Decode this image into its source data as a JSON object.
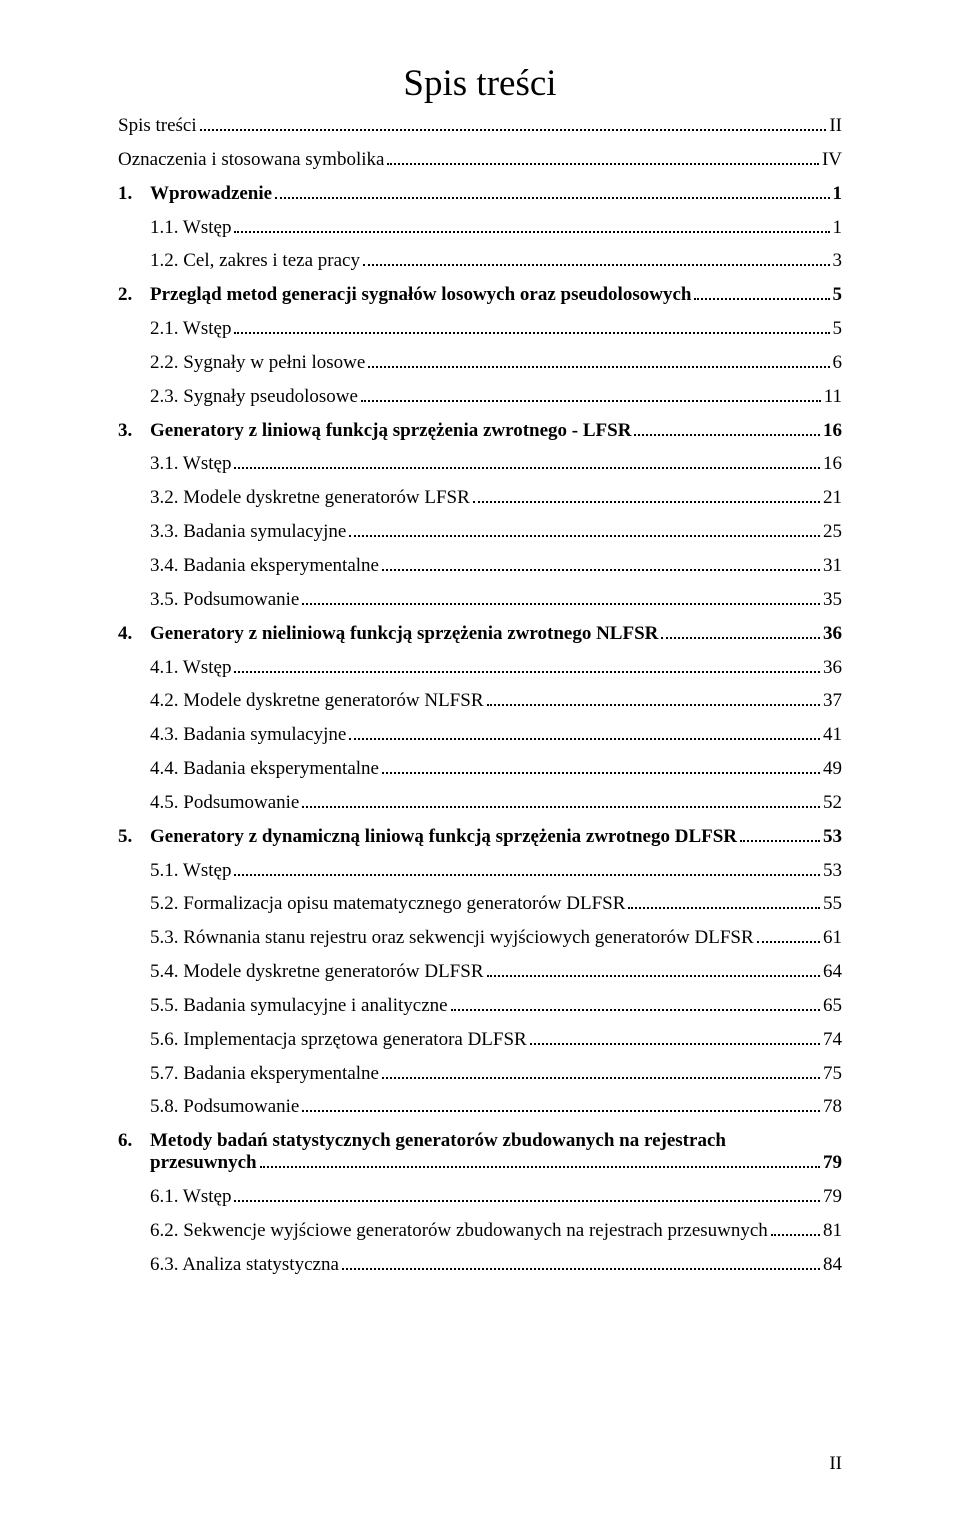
{
  "title": "Spis treści",
  "entries": [
    {
      "type": "plain",
      "indent": 0,
      "num": "",
      "label": "Spis treści",
      "page": "II"
    },
    {
      "type": "plain",
      "indent": 0,
      "num": "",
      "label": "Oznaczenia i stosowana symbolika",
      "page": "IV"
    },
    {
      "type": "bold",
      "indent": 0,
      "num": "1.",
      "label": "Wprowadzenie",
      "page": "1"
    },
    {
      "type": "plain",
      "indent": 1,
      "num": "",
      "label": "1.1. Wstęp",
      "page": "1"
    },
    {
      "type": "plain",
      "indent": 1,
      "num": "",
      "label": "1.2. Cel, zakres i teza pracy",
      "page": "3"
    },
    {
      "type": "bold",
      "indent": 0,
      "num": "2.",
      "label": "Przegląd metod generacji sygnałów losowych oraz pseudolosowych",
      "page": "5"
    },
    {
      "type": "plain",
      "indent": 1,
      "num": "",
      "label": "2.1. Wstęp",
      "page": "5"
    },
    {
      "type": "plain",
      "indent": 1,
      "num": "",
      "label": "2.2. Sygnały w pełni losowe",
      "page": "6"
    },
    {
      "type": "plain",
      "indent": 1,
      "num": "",
      "label": "2.3. Sygnały pseudolosowe",
      "page": "11"
    },
    {
      "type": "bold",
      "indent": 0,
      "num": "3.",
      "label": "Generatory z liniową funkcją sprzężenia zwrotnego - LFSR",
      "page": "16"
    },
    {
      "type": "plain",
      "indent": 1,
      "num": "",
      "label": "3.1. Wstęp",
      "page": "16"
    },
    {
      "type": "plain",
      "indent": 1,
      "num": "",
      "label": "3.2. Modele dyskretne generatorów LFSR",
      "page": "21"
    },
    {
      "type": "plain",
      "indent": 1,
      "num": "",
      "label": "3.3. Badania symulacyjne",
      "page": "25"
    },
    {
      "type": "plain",
      "indent": 1,
      "num": "",
      "label": "3.4. Badania eksperymentalne",
      "page": "31"
    },
    {
      "type": "plain",
      "indent": 1,
      "num": "",
      "label": "3.5. Podsumowanie",
      "page": "35"
    },
    {
      "type": "bold",
      "indent": 0,
      "num": "4.",
      "label": "Generatory z nieliniową funkcją sprzężenia zwrotnego NLFSR",
      "page": "36"
    },
    {
      "type": "plain",
      "indent": 1,
      "num": "",
      "label": "4.1. Wstęp",
      "page": "36"
    },
    {
      "type": "plain",
      "indent": 1,
      "num": "",
      "label": "4.2. Modele dyskretne generatorów NLFSR",
      "page": "37"
    },
    {
      "type": "plain",
      "indent": 1,
      "num": "",
      "label": "4.3. Badania symulacyjne",
      "page": "41"
    },
    {
      "type": "plain",
      "indent": 1,
      "num": "",
      "label": "4.4. Badania eksperymentalne",
      "page": "49"
    },
    {
      "type": "plain",
      "indent": 1,
      "num": "",
      "label": "4.5. Podsumowanie",
      "page": "52"
    },
    {
      "type": "bold",
      "indent": 0,
      "num": "5.",
      "label": "Generatory z dynamiczną liniową funkcją sprzężenia zwrotnego DLFSR",
      "page": "53"
    },
    {
      "type": "plain",
      "indent": 1,
      "num": "",
      "label": "5.1. Wstęp",
      "page": "53"
    },
    {
      "type": "plain",
      "indent": 1,
      "num": "",
      "label": "5.2. Formalizacja opisu matematycznego generatorów DLFSR",
      "page": "55"
    },
    {
      "type": "plain",
      "indent": 1,
      "num": "",
      "label": "5.3. Równania stanu rejestru oraz sekwencji wyjściowych generatorów DLFSR",
      "page": "61"
    },
    {
      "type": "plain",
      "indent": 1,
      "num": "",
      "label": "5.4. Modele dyskretne generatorów DLFSR",
      "page": "64"
    },
    {
      "type": "plain",
      "indent": 1,
      "num": "",
      "label": "5.5. Badania symulacyjne i analityczne",
      "page": "65"
    },
    {
      "type": "plain",
      "indent": 1,
      "num": "",
      "label": "5.6. Implementacja sprzętowa generatora DLFSR",
      "page": "74"
    },
    {
      "type": "plain",
      "indent": 1,
      "num": "",
      "label": "5.7. Badania eksperymentalne",
      "page": "75"
    },
    {
      "type": "plain",
      "indent": 1,
      "num": "",
      "label": "5.8. Podsumowanie",
      "page": "78"
    },
    {
      "type": "bold-multi",
      "indent": 0,
      "num": "6.",
      "label1": "Metody badań statystycznych generatorów zbudowanych na rejestrach",
      "label2": "przesuwnych",
      "page": "79"
    },
    {
      "type": "plain",
      "indent": 1,
      "num": "",
      "label": "6.1. Wstęp",
      "page": "79"
    },
    {
      "type": "plain",
      "indent": 1,
      "num": "",
      "label": "6.2. Sekwencje wyjściowe generatorów zbudowanych na rejestrach przesuwnych",
      "page": "81"
    },
    {
      "type": "plain",
      "indent": 1,
      "num": "",
      "label": "6.3. Analiza statystyczna",
      "page": "84"
    }
  ],
  "footer": "II"
}
